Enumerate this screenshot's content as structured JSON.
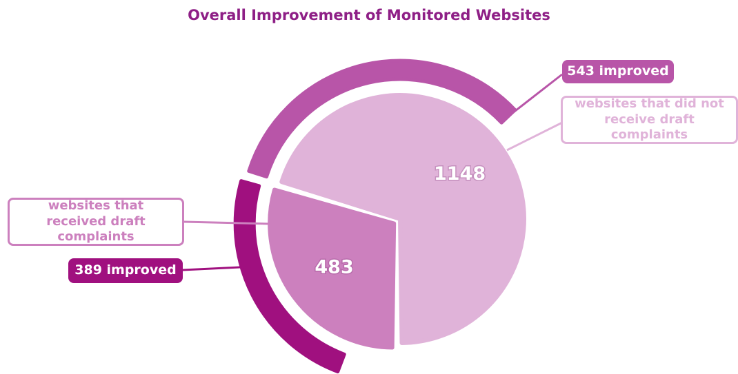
{
  "chart_data": {
    "type": "pie",
    "title": "Overall Improvement of Monitored Websites",
    "categories": [
      "websites that did not receive draft complaints",
      "websites that received draft complaints"
    ],
    "values": [
      1148,
      483
    ],
    "colors": [
      "#e0b3d9",
      "#cc80be"
    ],
    "improved": {
      "values": [
        543,
        389
      ],
      "value_labels": [
        "543 improved",
        "389 improved"
      ],
      "colors": [
        "#b855a8",
        "#a0107f"
      ]
    }
  }
}
